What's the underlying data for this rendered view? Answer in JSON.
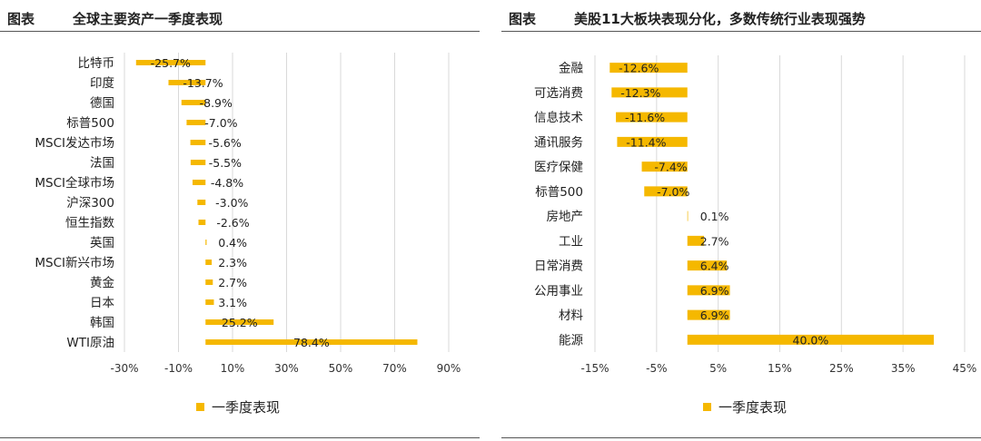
{
  "colors": {
    "bar": "#F5B800",
    "grid": "#d9d9d9",
    "text": "#333333"
  },
  "left": {
    "label": "图表",
    "title": "全球主要资产一季度表现",
    "legend": "一季度表现",
    "chart_data": {
      "type": "bar",
      "orientation": "horizontal",
      "title": "全球主要资产一季度表现",
      "categories": [
        "比特币",
        "印度",
        "德国",
        "标普500",
        "MSCI发达市场",
        "法国",
        "MSCI全球市场",
        "沪深300",
        "恒生指数",
        "英国",
        "MSCI新兴市场",
        "黄金",
        "日本",
        "韩国",
        "WTI原油"
      ],
      "series": [
        {
          "name": "一季度表现",
          "values": [
            -25.7,
            -13.7,
            -8.9,
            -7.0,
            -5.6,
            -5.5,
            -4.8,
            -3.0,
            -2.6,
            0.4,
            2.3,
            2.7,
            3.1,
            25.2,
            78.4
          ]
        }
      ],
      "value_labels": [
        "-25.7%",
        "-13.7%",
        "-8.9%",
        "-7.0%",
        "-5.6%",
        "-5.5%",
        "-4.8%",
        "-3.0%",
        "-2.6%",
        "0.4%",
        "2.3%",
        "2.7%",
        "3.1%",
        "25.2%",
        "78.4%"
      ],
      "xlim": [
        -30,
        90
      ],
      "xticks": [
        -30,
        -10,
        10,
        30,
        50,
        70,
        90
      ],
      "xtick_labels": [
        "-30%",
        "-10%",
        "10%",
        "30%",
        "50%",
        "70%",
        "90%"
      ],
      "grid": true,
      "legend_position": "bottom"
    }
  },
  "right": {
    "label": "图表",
    "title": "美股11大板块表现分化，多数传统行业表现强势",
    "legend": "一季度表现",
    "chart_data": {
      "type": "bar",
      "orientation": "horizontal",
      "title": "美股11大板块表现分化，多数传统行业表现强势",
      "categories": [
        "金融",
        "可选消费",
        "信息技术",
        "通讯服务",
        "医疗保健",
        "标普500",
        "房地产",
        "工业",
        "日常消费",
        "公用事业",
        "材料",
        "能源"
      ],
      "series": [
        {
          "name": "一季度表现",
          "values": [
            -12.6,
            -12.3,
            -11.6,
            -11.4,
            -7.4,
            -7.0,
            0.1,
            2.7,
            6.4,
            6.9,
            6.9,
            40.0
          ]
        }
      ],
      "value_labels": [
        "-12.6%",
        "-12.3%",
        "-11.6%",
        "-11.4%",
        "-7.4%",
        "-7.0%",
        "0.1%",
        "2.7%",
        "6.4%",
        "6.9%",
        "6.9%",
        "40.0%"
      ],
      "xlim": [
        -15,
        45
      ],
      "xticks": [
        -15,
        -5,
        5,
        15,
        25,
        35,
        45
      ],
      "xtick_labels": [
        "-15%",
        "-5%",
        "5%",
        "15%",
        "25%",
        "35%",
        "45%"
      ],
      "grid": true,
      "legend_position": "bottom"
    }
  }
}
